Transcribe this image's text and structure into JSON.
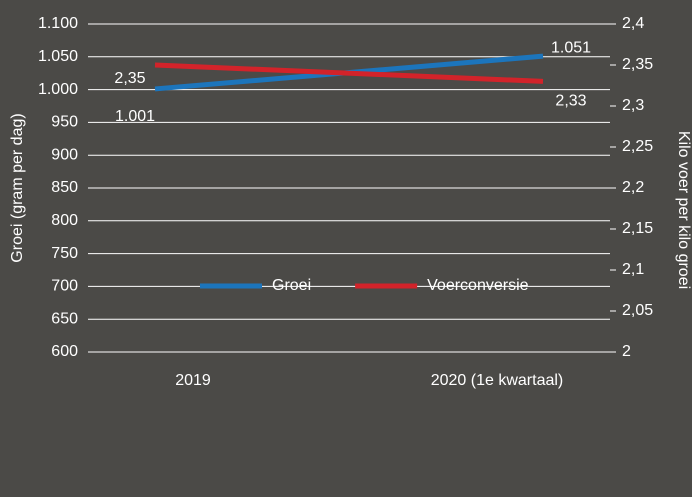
{
  "chart_data": {
    "type": "line",
    "categories": [
      "2019",
      "2020 (1e kwartaal)"
    ],
    "series": [
      {
        "name": "Groei",
        "color": "#1c75bc",
        "values": [
          1001,
          1051
        ],
        "value_labels": [
          "1.001",
          "1.051"
        ]
      },
      {
        "name": "Voerconversie",
        "color": "#d2232a",
        "axis": "y2",
        "values": [
          2.35,
          2.33
        ],
        "value_labels": [
          "2,35",
          "2,33"
        ]
      }
    ],
    "ylabel": "Groei (gram per dag)",
    "y2label": "Kilo voer per kilo groei",
    "ylim": [
      600,
      1100
    ],
    "yticks": [
      600,
      650,
      700,
      750,
      800,
      850,
      900,
      950,
      {
        "value": 1000,
        "label": "1.000"
      },
      {
        "value": 1050,
        "label": "1.050"
      },
      {
        "value": 1100,
        "label": "1.100"
      }
    ],
    "y2lim": [
      2,
      2.4
    ],
    "y2ticks": [
      2,
      {
        "value": 2.05,
        "label": "2,05"
      },
      {
        "value": 2.1,
        "label": "2,1"
      },
      {
        "value": 2.15,
        "label": "2,15"
      },
      {
        "value": 2.2,
        "label": "2,2"
      },
      {
        "value": 2.25,
        "label": "2,25"
      },
      {
        "value": 2.3,
        "label": "2,3"
      },
      {
        "value": 2.35,
        "label": "2,35"
      },
      {
        "value": 2.4,
        "label": "2,4"
      }
    ],
    "grid": true,
    "legend": "center"
  }
}
